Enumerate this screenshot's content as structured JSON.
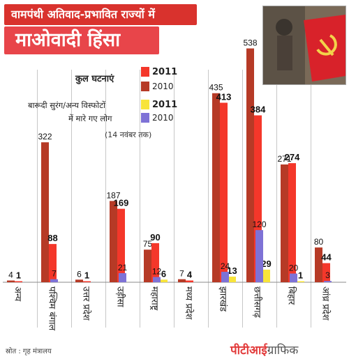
{
  "title_line1": "वामपंथी अतिवाद-प्रभावित राज्यों में",
  "title_line2": "माओवादी हिंसा",
  "legend": {
    "group1_label": "कुल घटनाएं",
    "group2_label_line1": "बारूदी सुरंग/अन्य विस्फोटों",
    "group2_label_line2": "में मारे गए लोग",
    "note": "(14 नवंबर तक)",
    "year_2011": "2011",
    "year_2010": "2010"
  },
  "colors": {
    "incidents_2010": "#b63a26",
    "incidents_2011": "#f4372a",
    "killed_2011": "#f8e43a",
    "killed_2010": "#7e72d6",
    "title_dark": "#d9322d",
    "title_light": "#e8454a"
  },
  "source": "स्रोत : गृह मंत्रालय",
  "brand_part1": "पीटीआई",
  "brand_part2": "ग्राफिक",
  "photo_icon": "hammer-sickle-flag-photo",
  "chart_data": {
    "type": "bar",
    "categories": [
      "अन्य",
      "पश्चिम बंगाल",
      "उत्तर प्रदेश",
      "उड़ीसा",
      "महाराष्ट्र",
      "मध्य प्रदेश",
      "झारखंड",
      "छत्तीसगढ़",
      "बिहार",
      "आंध्र प्रदेश"
    ],
    "series": [
      {
        "name": "कुल घटनाएं 2010",
        "values": [
          4,
          322,
          6,
          187,
          75,
          7,
          435,
          538,
          271,
          80
        ]
      },
      {
        "name": "कुल घटनाएं 2011",
        "values": [
          1,
          88,
          1,
          169,
          90,
          4,
          413,
          384,
          274,
          44
        ]
      },
      {
        "name": "बारूदी सुरंग/अन्य विस्फोटों में मारे गए लोग 2011",
        "values": [
          null,
          null,
          null,
          null,
          6,
          null,
          13,
          29,
          1,
          null
        ]
      },
      {
        "name": "बारूदी सुरंग/अन्य विस्फोटों में मारे गए लोग 2010",
        "values": [
          null,
          7,
          null,
          21,
          12,
          null,
          24,
          120,
          20,
          3
        ]
      }
    ],
    "ylim": [
      0,
      550
    ],
    "grid": false,
    "legend_position": "top-left",
    "xlabel": "",
    "ylabel": ""
  }
}
